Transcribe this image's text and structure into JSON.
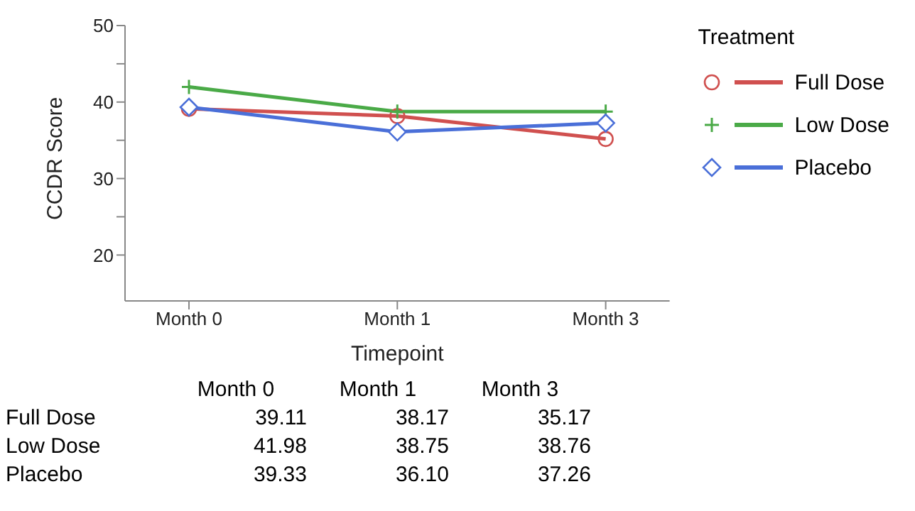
{
  "chart_data": {
    "type": "line",
    "xlabel": "Timepoint",
    "ylabel": "CCDR Score",
    "legend_title": "Treatment",
    "legend": "top right",
    "categories": [
      "Month 0",
      "Month 1",
      "Month 3"
    ],
    "series": [
      {
        "name": "Full Dose",
        "color": "#d0504f",
        "marker": "circle",
        "values": [
          39.11,
          38.17,
          35.17
        ],
        "value_labels": [
          "39.11",
          "38.17",
          "35.17"
        ]
      },
      {
        "name": "Low Dose",
        "color": "#4aaa47",
        "marker": "cross",
        "values": [
          41.98,
          38.75,
          38.76
        ],
        "value_labels": [
          "41.98",
          "38.75",
          "38.76"
        ]
      },
      {
        "name": "Placebo",
        "color": "#4a6fd8",
        "marker": "diamond",
        "values": [
          39.33,
          36.1,
          37.26
        ],
        "value_labels": [
          "39.33",
          "36.10",
          "37.26"
        ]
      }
    ],
    "ylim": [
      14,
      50
    ],
    "yticks": [
      20,
      {
        "value": 25,
        "label": null
      },
      30,
      {
        "value": 35,
        "label": null
      },
      40,
      {
        "value": 45,
        "label": null
      },
      50
    ],
    "grid": false
  }
}
